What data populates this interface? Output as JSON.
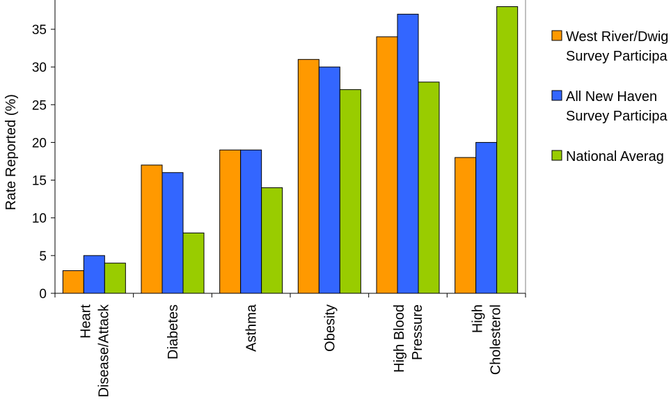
{
  "chart_data": {
    "type": "bar",
    "title": "",
    "xlabel": "",
    "ylabel": "Rate Reported (%)",
    "ylim": [
      0,
      38
    ],
    "yticks": [
      0,
      5,
      10,
      15,
      20,
      25,
      30,
      35
    ],
    "grid": false,
    "legend_position": "right",
    "categories": [
      [
        "Heart",
        "Disease/Attack"
      ],
      [
        "Diabetes"
      ],
      [
        "Asthma"
      ],
      [
        "Obesity"
      ],
      [
        "High Blood",
        "Pressure"
      ],
      [
        "High",
        "Cholesterol"
      ]
    ],
    "series": [
      {
        "name": [
          "West River/Dwig",
          "Survey Participa"
        ],
        "color": "#ff9900",
        "values": [
          3,
          17,
          19,
          31,
          34,
          18
        ]
      },
      {
        "name": [
          "All New Haven",
          "Survey Participa"
        ],
        "color": "#3366ff",
        "values": [
          5,
          16,
          19,
          30,
          37,
          20
        ]
      },
      {
        "name": [
          "National Averag"
        ],
        "color": "#99cc00",
        "values": [
          4,
          8,
          14,
          27,
          28,
          38
        ]
      }
    ]
  }
}
